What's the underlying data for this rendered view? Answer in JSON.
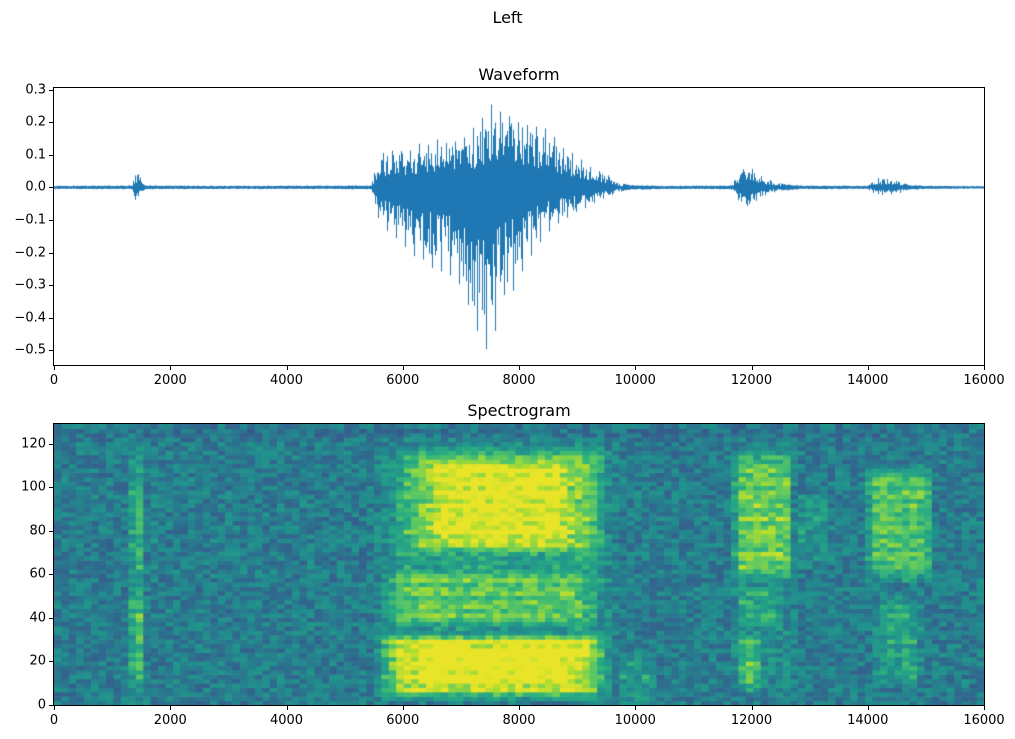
{
  "figure": {
    "title": "Left"
  },
  "chart_data": [
    {
      "type": "line",
      "title": "Waveform",
      "series_color": "#1f77b4",
      "xlabel": "",
      "ylabel": "",
      "xlim": [
        0,
        16000
      ],
      "ylim": [
        -0.545,
        0.305
      ],
      "xticks": [
        0,
        2000,
        4000,
        6000,
        8000,
        10000,
        12000,
        14000,
        16000
      ],
      "xtick_labels": [
        "0",
        "2000",
        "4000",
        "6000",
        "8000",
        "10000",
        "12000",
        "14000",
        "16000"
      ],
      "yticks": [
        0.3,
        0.2,
        0.1,
        0.0,
        -0.1,
        -0.2,
        -0.3,
        -0.4,
        -0.5
      ],
      "ytick_labels": [
        "0.3",
        "0.2",
        "0.1",
        "0.0",
        "−0.1",
        "−0.2",
        "−0.3",
        "−0.4",
        "−0.5"
      ],
      "grid": false,
      "description": "Audio waveform amplitude vs sample index; quiet baseline with a small click near 1400, a loud speech burst from ~5600 to ~9700 peaking at +0.27 and −0.52 near sample 7500, a small burst near 11900 (±0.07) and a faint burst near 14300 (±0.03).",
      "envelope": [
        [
          0,
          0.005,
          -0.005
        ],
        [
          1340,
          0.006,
          -0.006
        ],
        [
          1400,
          0.045,
          -0.04
        ],
        [
          1460,
          0.05,
          -0.045
        ],
        [
          1520,
          0.012,
          -0.012
        ],
        [
          1600,
          0.006,
          -0.006
        ],
        [
          3000,
          0.005,
          -0.005
        ],
        [
          5450,
          0.006,
          -0.006
        ],
        [
          5550,
          0.07,
          -0.09
        ],
        [
          5650,
          0.11,
          -0.13
        ],
        [
          5900,
          0.12,
          -0.16
        ],
        [
          6200,
          0.13,
          -0.22
        ],
        [
          6600,
          0.15,
          -0.26
        ],
        [
          7000,
          0.16,
          -0.3
        ],
        [
          7200,
          0.18,
          -0.42
        ],
        [
          7400,
          0.22,
          -0.52
        ],
        [
          7550,
          0.27,
          -0.48
        ],
        [
          7700,
          0.26,
          -0.38
        ],
        [
          7900,
          0.23,
          -0.32
        ],
        [
          8100,
          0.22,
          -0.26
        ],
        [
          8400,
          0.19,
          -0.16
        ],
        [
          8700,
          0.14,
          -0.11
        ],
        [
          9000,
          0.1,
          -0.08
        ],
        [
          9200,
          0.07,
          -0.06
        ],
        [
          9400,
          0.05,
          -0.04
        ],
        [
          9550,
          0.04,
          -0.03
        ],
        [
          9700,
          0.015,
          -0.015
        ],
        [
          9900,
          0.008,
          -0.008
        ],
        [
          10500,
          0.005,
          -0.005
        ],
        [
          11650,
          0.006,
          -0.006
        ],
        [
          11800,
          0.05,
          -0.05
        ],
        [
          11950,
          0.07,
          -0.065
        ],
        [
          12100,
          0.045,
          -0.04
        ],
        [
          12300,
          0.025,
          -0.02
        ],
        [
          12500,
          0.012,
          -0.012
        ],
        [
          12800,
          0.006,
          -0.006
        ],
        [
          14000,
          0.005,
          -0.005
        ],
        [
          14150,
          0.03,
          -0.025
        ],
        [
          14350,
          0.028,
          -0.024
        ],
        [
          14550,
          0.02,
          -0.018
        ],
        [
          14700,
          0.008,
          -0.008
        ],
        [
          15000,
          0.005,
          -0.005
        ],
        [
          16000,
          0.004,
          -0.004
        ]
      ]
    },
    {
      "type": "heatmap",
      "title": "Spectrogram",
      "colormap": "viridis",
      "xlabel": "",
      "ylabel": "",
      "xlim": [
        0,
        16000
      ],
      "ylim": [
        0,
        129
      ],
      "xticks": [
        0,
        2000,
        4000,
        6000,
        8000,
        10000,
        12000,
        14000,
        16000
      ],
      "xtick_labels": [
        "0",
        "2000",
        "4000",
        "6000",
        "8000",
        "10000",
        "12000",
        "14000",
        "16000"
      ],
      "yticks": [
        0,
        20,
        40,
        60,
        80,
        100,
        120
      ],
      "ytick_labels": [
        "0",
        "20",
        "40",
        "60",
        "80",
        "100",
        "120"
      ],
      "grid": false,
      "time_bins": 125,
      "freq_bins": 64,
      "base_level": 0.42,
      "noise": 0.22,
      "value_range": [
        0.02,
        0.97
      ],
      "description": "Viridis spectrogram, mottled teal background; bright vertical stripe near 1400; large bright energy region 5500-9700 (strongest below bin 35 and between bins 64-118); bright patches 11700-12700 and 14000-15100; faint patch 12750-13400.",
      "events": [
        [
          1280,
          1570,
          0,
          129,
          0.18
        ],
        [
          1300,
          1560,
          8,
          56,
          0.2
        ],
        [
          1300,
          1560,
          58,
          106,
          0.12
        ],
        [
          1620,
          1800,
          55,
          115,
          0.08
        ],
        [
          5450,
          9750,
          0,
          129,
          0.13
        ],
        [
          5500,
          9600,
          2,
          34,
          0.4
        ],
        [
          5550,
          9400,
          36,
          63,
          0.2
        ],
        [
          5850,
          9550,
          64,
          120,
          0.26
        ],
        [
          6400,
          8950,
          72,
          114,
          0.17
        ],
        [
          6200,
          9000,
          8,
          28,
          0.1
        ],
        [
          6000,
          9200,
          66,
          72,
          -0.16
        ],
        [
          5600,
          9300,
          30,
          37,
          -0.08
        ],
        [
          9700,
          10350,
          0,
          24,
          0.12
        ],
        [
          11600,
          12800,
          0,
          129,
          0.06
        ],
        [
          11680,
          12720,
          55,
          118,
          0.3
        ],
        [
          11760,
          12180,
          6,
          34,
          0.26
        ],
        [
          11700,
          12500,
          36,
          55,
          0.12
        ],
        [
          12750,
          13400,
          62,
          100,
          0.09
        ],
        [
          13950,
          15150,
          55,
          112,
          0.3
        ],
        [
          14100,
          14950,
          8,
          52,
          0.15
        ],
        [
          0,
          16000,
          121,
          129,
          -0.05
        ]
      ],
      "colormap_anchors": [
        "#440154",
        "#3b528b",
        "#21918c",
        "#5ec962",
        "#fde725"
      ]
    }
  ]
}
